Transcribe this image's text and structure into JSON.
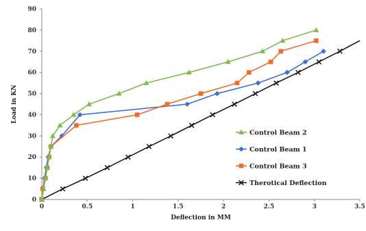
{
  "chart_data": {
    "type": "line",
    "title": "",
    "xlabel": "Deflection in MM",
    "ylabel": "Load in KN",
    "xlim": [
      0,
      3.5
    ],
    "ylim": [
      0,
      90
    ],
    "x_ticks": [
      "0",
      "0.5",
      "1",
      "1.5",
      "2",
      "2.5",
      "3",
      "3.5"
    ],
    "y_ticks": [
      "0",
      "10",
      "20",
      "30",
      "40",
      "50",
      "60",
      "70",
      "80",
      "90"
    ],
    "grid": false,
    "legend_position": "right",
    "series": [
      {
        "name": "Control Beam 2",
        "color": "#7DBB4E",
        "marker": "triangle",
        "x": [
          0,
          0.02,
          0.04,
          0.06,
          0.08,
          0.1,
          0.12,
          0.2,
          0.35,
          0.52,
          0.85,
          1.15,
          1.62,
          2.05,
          2.43,
          2.65,
          3.02
        ],
        "y": [
          0,
          5,
          10,
          15,
          20,
          25,
          30,
          35,
          40,
          45,
          50,
          55,
          60,
          65,
          70,
          75,
          80
        ]
      },
      {
        "name": "Control Beam 1",
        "color": "#3E6FD1",
        "marker": "diamond",
        "x": [
          0,
          0.01,
          0.03,
          0.05,
          0.07,
          0.1,
          0.22,
          0.42,
          1.6,
          1.93,
          2.38,
          2.7,
          2.9,
          3.1
        ],
        "y": [
          0,
          5,
          10,
          15,
          20,
          25,
          30,
          40,
          45,
          50,
          55,
          60,
          65,
          70
        ],
        "label_points": []
      },
      {
        "name": "Control Beam 3",
        "color": "#F26B2A",
        "marker": "square",
        "x": [
          0,
          0.01,
          0.04,
          0.06,
          0.08,
          0.1,
          0.38,
          1.05,
          1.38,
          1.75,
          2.15,
          2.28,
          2.52,
          2.63,
          3.02
        ],
        "y": [
          0,
          5,
          10,
          15,
          20,
          25,
          35,
          40,
          45,
          50,
          55,
          60,
          65,
          70,
          75
        ]
      },
      {
        "name": "Therotical Deflection",
        "color": "#1a1a1a",
        "marker": "cross",
        "line_extends_to": [
          3.5,
          75
        ],
        "x": [
          0,
          0.23,
          0.48,
          0.72,
          0.95,
          1.18,
          1.42,
          1.65,
          1.88,
          2.12,
          2.35,
          2.58,
          2.82,
          3.05,
          3.28
        ],
        "y": [
          0,
          5,
          10,
          15,
          20,
          25,
          30,
          35,
          40,
          45,
          50,
          55,
          60,
          65,
          70
        ]
      }
    ],
    "legend_order": [
      "Control Beam 2",
      "Control Beam 1",
      "Control Beam 3",
      "Therotical Deflection"
    ]
  }
}
